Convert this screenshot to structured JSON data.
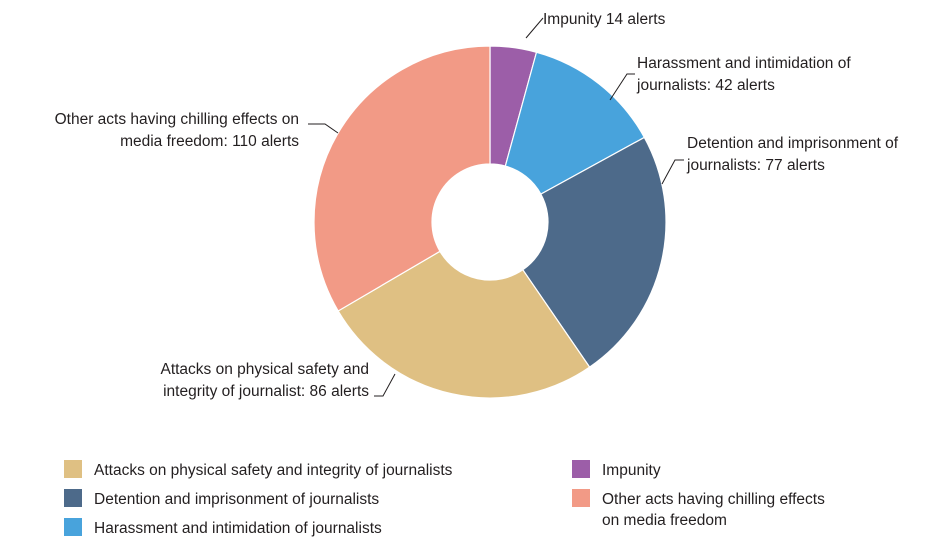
{
  "chart_data": {
    "type": "pie",
    "donut": true,
    "slices": [
      {
        "key": "impunity",
        "label": "Impunity 14 alerts",
        "value": 14,
        "color": "#9c5ea8"
      },
      {
        "key": "harassment",
        "label": "Harassment and intimidation of journalists: 42 alerts",
        "value": 42,
        "color": "#48a3dc"
      },
      {
        "key": "detention",
        "label": "Detention and imprisonment of journalists: 77 alerts",
        "value": 77,
        "color": "#4d6a8a"
      },
      {
        "key": "attacks",
        "label": "Attacks on physical safety and integrity of journalist: 86 alerts",
        "value": 86,
        "color": "#dfc083"
      },
      {
        "key": "other",
        "label": "Other acts having chilling effects on media freedom: 110 alerts",
        "value": 110,
        "color": "#f29a86"
      }
    ],
    "slice_label_lines": {
      "impunity": [
        "Impunity 14 alerts"
      ],
      "harassment": [
        "Harassment and intimidation of",
        "journalists: 42 alerts"
      ],
      "detention": [
        "Detention and imprisonment of",
        "journalists: 77 alerts"
      ],
      "attacks": [
        "Attacks on physical safety and",
        "integrity of journalist: 86 alerts"
      ],
      "other": [
        "Other acts having chilling effects on",
        "media freedom: 110 alerts"
      ]
    },
    "legend_placement": "bottom",
    "legend": [
      {
        "key": "attacks",
        "lines": [
          "Attacks on physical safety and integrity of journalists"
        ],
        "color": "#dfc083"
      },
      {
        "key": "detention",
        "lines": [
          "Detention and imprisonment of journalists"
        ],
        "color": "#4d6a8a"
      },
      {
        "key": "harassment",
        "lines": [
          "Harassment and intimidation of journalists"
        ],
        "color": "#48a3dc"
      },
      {
        "key": "impunity",
        "lines": [
          "Impunity"
        ],
        "color": "#9c5ea8"
      },
      {
        "key": "other",
        "lines": [
          "Other acts having chilling effects",
          "on media freedom"
        ],
        "color": "#f29a86"
      }
    ]
  }
}
